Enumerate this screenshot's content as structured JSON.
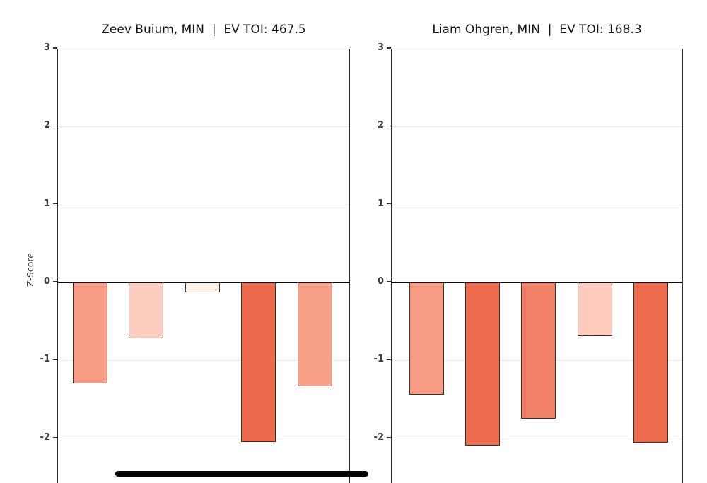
{
  "figure": {
    "background": "#ffffff"
  },
  "styles": {
    "grid_color": "#eaeaea",
    "spine_color": "#2b2b2b",
    "zero_line_color": "#0c0c0c",
    "bar_edge_color": "#39302a",
    "tick_label_color": "#3b3b3b",
    "title_color": "#121212",
    "annotation_color": "#000000"
  },
  "annotation": {
    "shape": "thick-black-rounded-underline-below-left-chart"
  },
  "chart_data": [
    {
      "type": "bar",
      "title": "Zeev Buium, MIN  |  EV TOI: 467.5",
      "ylabel": "Z-Score",
      "xlabel": "",
      "categories": [
        "",
        "",
        "",
        "",
        ""
      ],
      "values": [
        -1.3,
        -0.72,
        -0.13,
        -2.05,
        -1.33
      ],
      "bar_colors": [
        "#F89C85",
        "#FDCEC0",
        "#FDF1EC",
        "#EB6A4D",
        "#F89F88"
      ],
      "yticks": [
        3,
        2,
        1,
        0,
        -1,
        -2
      ],
      "ylim_visible": [
        -2.58,
        3
      ],
      "grid": true,
      "legend": false,
      "zero_line": true
    },
    {
      "type": "bar",
      "title": "Liam Ohgren, MIN  |  EV TOI: 168.3",
      "ylabel": "",
      "xlabel": "",
      "categories": [
        "",
        "",
        "",
        "",
        ""
      ],
      "values": [
        -1.44,
        -2.09,
        -1.75,
        -0.69,
        -2.06
      ],
      "bar_colors": [
        "#F99C84",
        "#EB6B4C",
        "#F08066",
        "#FECBBD",
        "#EB6B4C"
      ],
      "yticks": [
        3,
        2,
        1,
        0,
        -1,
        -2
      ],
      "ylim_visible": [
        -2.58,
        3
      ],
      "grid": true,
      "legend": false,
      "zero_line": true
    }
  ]
}
